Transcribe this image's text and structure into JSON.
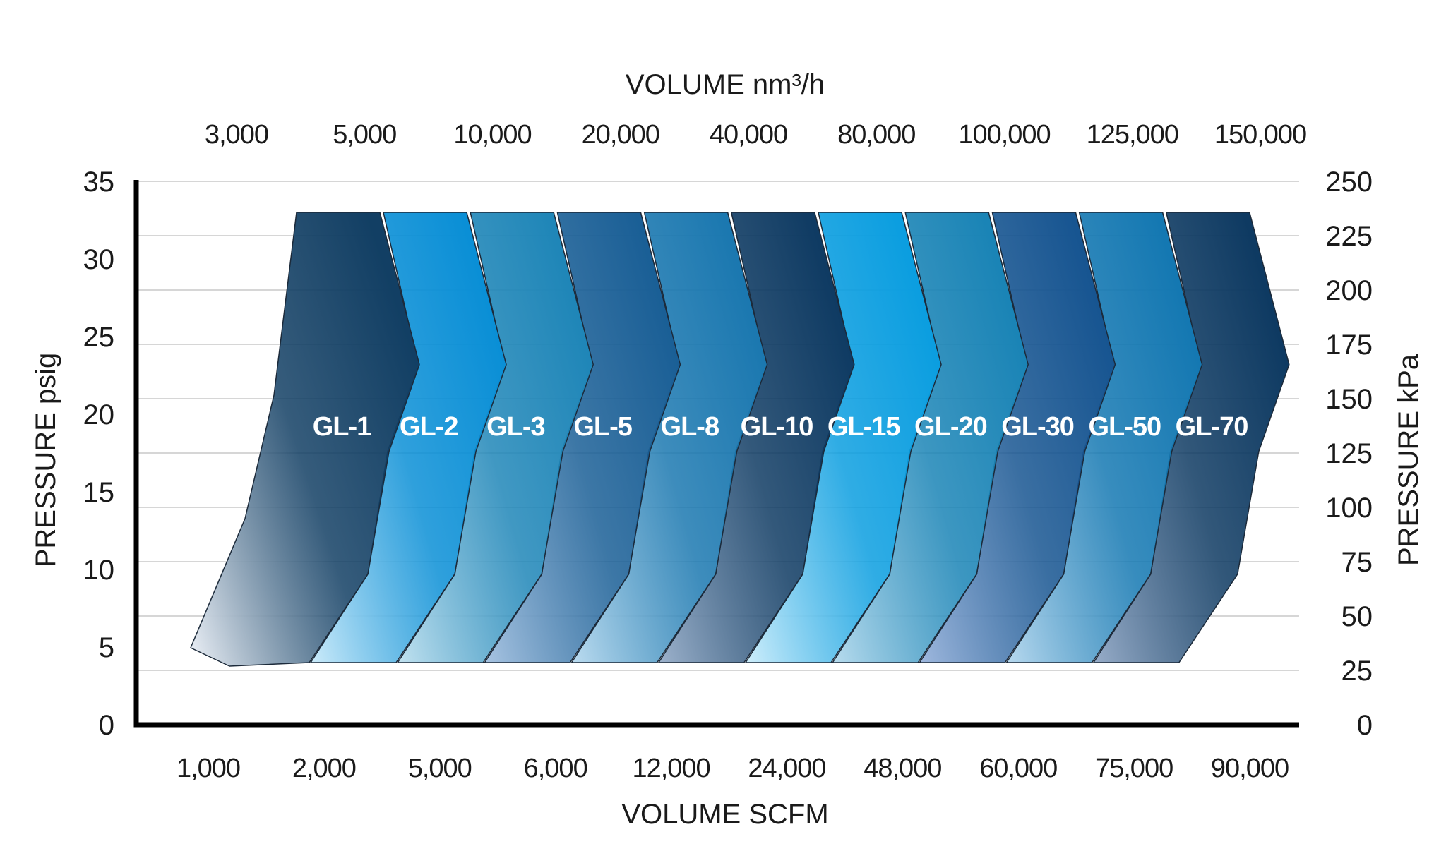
{
  "chart_data": {
    "type": "area",
    "top_axis": {
      "title": "VOLUME nm³/h",
      "ticks": [
        "3,000",
        "5,000",
        "10,000",
        "20,000",
        "40,000",
        "80,000",
        "100,000",
        "125,000",
        "150,000"
      ]
    },
    "bottom_axis": {
      "title": "VOLUME SCFM",
      "ticks": [
        "1,000",
        "2,000",
        "5,000",
        "6,000",
        "12,000",
        "24,000",
        "48,000",
        "60,000",
        "75,000",
        "90,000"
      ]
    },
    "left_axis": {
      "title": "PRESSURE psig",
      "ticks": [
        "0",
        "5",
        "10",
        "15",
        "20",
        "25",
        "30",
        "35"
      ],
      "ylim": [
        0,
        35
      ]
    },
    "right_axis": {
      "title": "PRESSURE kPa",
      "ticks": [
        "0",
        "25",
        "50",
        "75",
        "100",
        "125",
        "150",
        "175",
        "200",
        "225",
        "250"
      ],
      "ylim": [
        0,
        250
      ]
    },
    "grid": true,
    "series": [
      {
        "name": "GL-1",
        "color_dark": "#123f64",
        "color_light": "#eef2f8",
        "pressure_range_psig": [
          4,
          33
        ]
      },
      {
        "name": "GL-2",
        "color_dark": "#0a8fd6",
        "color_light": "#ccebfa",
        "pressure_range_psig": [
          4,
          33
        ]
      },
      {
        "name": "GL-3",
        "color_dark": "#1f86b8",
        "color_light": "#c2e2f0",
        "pressure_range_psig": [
          4,
          33
        ]
      },
      {
        "name": "GL-5",
        "color_dark": "#1a5f96",
        "color_light": "#a8c4e2",
        "pressure_range_psig": [
          4,
          33
        ]
      },
      {
        "name": "GL-8",
        "color_dark": "#1b78b0",
        "color_light": "#bcdcf0",
        "pressure_range_psig": [
          4,
          33
        ]
      },
      {
        "name": "GL-10",
        "color_dark": "#0f3b63",
        "color_light": "#9db2cc",
        "pressure_range_psig": [
          4,
          33
        ]
      },
      {
        "name": "GL-15",
        "color_dark": "#0b9ee0",
        "color_light": "#cfeefb",
        "pressure_range_psig": [
          4,
          33
        ]
      },
      {
        "name": "GL-20",
        "color_dark": "#1a84b6",
        "color_light": "#b8dcee",
        "pressure_range_psig": [
          4,
          33
        ]
      },
      {
        "name": "GL-30",
        "color_dark": "#175591",
        "color_light": "#9fb8de",
        "pressure_range_psig": [
          4,
          33
        ]
      },
      {
        "name": "GL-50",
        "color_dark": "#1478b2",
        "color_light": "#b8d9ef",
        "pressure_range_psig": [
          4,
          33
        ]
      },
      {
        "name": "GL-70",
        "color_dark": "#0e3a62",
        "color_light": "#98adc9",
        "pressure_range_psig": [
          4,
          33
        ]
      }
    ]
  }
}
